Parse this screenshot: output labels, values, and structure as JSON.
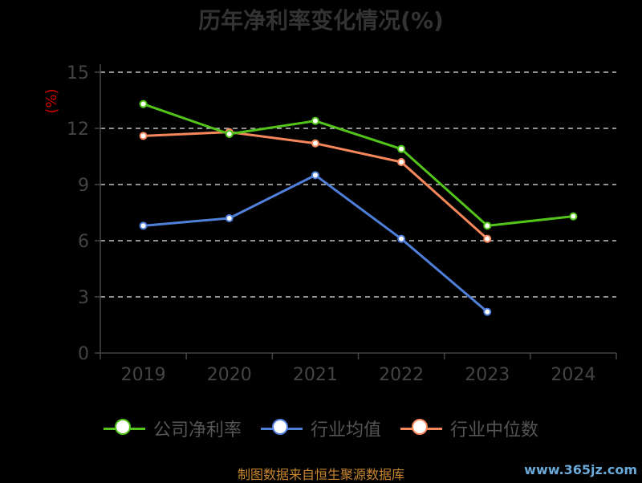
{
  "chart_data": {
    "type": "line",
    "title": "历年净利率变化情况(%)",
    "ylabel": "(%)",
    "categories": [
      "2019",
      "2020",
      "2021",
      "2022",
      "2023",
      "2024"
    ],
    "yticks": [
      "0",
      "3",
      "6",
      "9",
      "12",
      "15"
    ],
    "ylim": [
      0,
      15
    ],
    "grid": true,
    "series": [
      {
        "name": "公司净利率",
        "color": "#52c41a",
        "values": [
          13.3,
          11.7,
          12.4,
          10.9,
          6.8,
          7.3
        ]
      },
      {
        "name": "行业均值",
        "color": "#4f7fd9",
        "values": [
          6.8,
          7.2,
          9.5,
          6.1,
          2.2,
          null
        ]
      },
      {
        "name": "行业中位数",
        "color": "#f5875a",
        "values": [
          11.6,
          11.8,
          11.2,
          10.2,
          6.1,
          null
        ]
      }
    ]
  },
  "source_note": "制图数据来自恒生聚源数据库",
  "watermark": "www.365jz.com"
}
